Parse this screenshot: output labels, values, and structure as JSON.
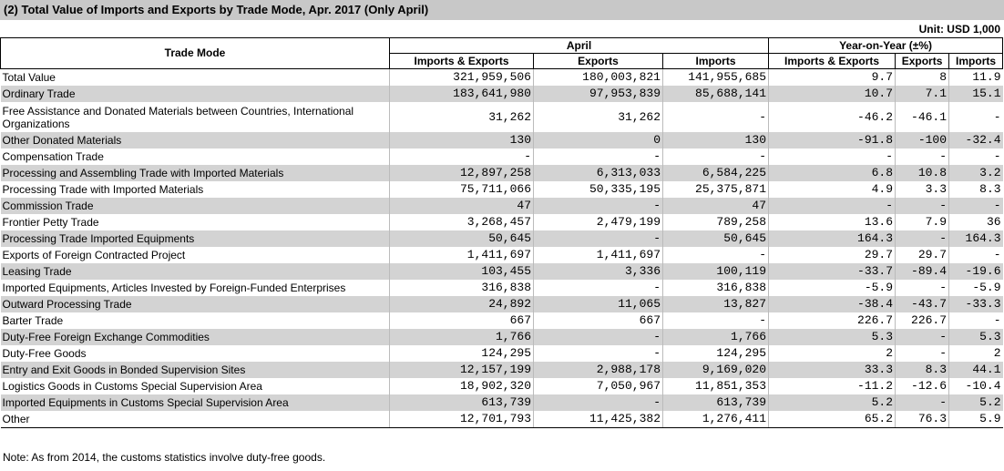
{
  "header": {
    "title": "(2) Total Value of Imports and Exports by Trade Mode, Apr. 2017 (Only April)",
    "unit": "Unit: USD 1,000"
  },
  "table": {
    "columns": {
      "mode": "Trade Mode",
      "groups": [
        "April",
        "Year-on-Year (±%)"
      ],
      "sub": [
        "Imports & Exports",
        "Exports",
        "Imports",
        "Imports & Exports",
        "Exports",
        "Imports"
      ]
    },
    "rows": [
      [
        "Total Value",
        "321,959,506",
        "180,003,821",
        "141,955,685",
        "9.7",
        "8",
        "11.9"
      ],
      [
        "Ordinary Trade",
        "183,641,980",
        "97,953,839",
        "85,688,141",
        "10.7",
        "7.1",
        "15.1"
      ],
      [
        "Free Assistance and Donated Materials between Countries, International Organizations",
        "31,262",
        "31,262",
        "-",
        "-46.2",
        "-46.1",
        "-"
      ],
      [
        "Other Donated Materials",
        "130",
        "0",
        "130",
        "-91.8",
        "-100",
        "-32.4"
      ],
      [
        "Compensation Trade",
        "-",
        "-",
        "-",
        "-",
        "-",
        "-"
      ],
      [
        "Processing and Assembling Trade with Imported Materials",
        "12,897,258",
        "6,313,033",
        "6,584,225",
        "6.8",
        "10.8",
        "3.2"
      ],
      [
        "Processing Trade with Imported Materials",
        "75,711,066",
        "50,335,195",
        "25,375,871",
        "4.9",
        "3.3",
        "8.3"
      ],
      [
        "Commission Trade",
        "47",
        "-",
        "47",
        "-",
        "-",
        "-"
      ],
      [
        "Frontier Petty Trade",
        "3,268,457",
        "2,479,199",
        "789,258",
        "13.6",
        "7.9",
        "36"
      ],
      [
        "Processing Trade Imported Equipments",
        "50,645",
        "-",
        "50,645",
        "164.3",
        "-",
        "164.3"
      ],
      [
        "Exports of Foreign Contracted Project",
        "1,411,697",
        "1,411,697",
        "-",
        "29.7",
        "29.7",
        "-"
      ],
      [
        "Leasing Trade",
        "103,455",
        "3,336",
        "100,119",
        "-33.7",
        "-89.4",
        "-19.6"
      ],
      [
        "Imported Equipments, Articles Invested by Foreign-Funded Enterprises",
        "316,838",
        "-",
        "316,838",
        "-5.9",
        "-",
        "-5.9"
      ],
      [
        "Outward Processing Trade",
        "24,892",
        "11,065",
        "13,827",
        "-38.4",
        "-43.7",
        "-33.3"
      ],
      [
        "Barter Trade",
        "667",
        "667",
        "-",
        "226.7",
        "226.7",
        "-"
      ],
      [
        "Duty-Free Foreign Exchange Commodities",
        "1,766",
        "-",
        "1,766",
        "5.3",
        "-",
        "5.3"
      ],
      [
        "Duty-Free Goods",
        "124,295",
        "-",
        "124,295",
        "2",
        "-",
        "2"
      ],
      [
        "Entry and Exit Goods in Bonded Supervision Sites",
        "12,157,199",
        "2,988,178",
        "9,169,020",
        "33.3",
        "8.3",
        "44.1"
      ],
      [
        "Logistics Goods in Customs Special Supervision Area",
        "18,902,320",
        "7,050,967",
        "11,851,353",
        "-11.2",
        "-12.6",
        "-10.4"
      ],
      [
        "Imported Equipments in Customs Special Supervision Area",
        "613,739",
        "-",
        "613,739",
        "5.2",
        "-",
        "5.2"
      ],
      [
        "Other",
        "12,701,793",
        "11,425,382",
        "1,276,411",
        "65.2",
        "76.3",
        "5.9"
      ]
    ]
  },
  "note": "Note: As from 2014, the customs statistics involve duty-free goods."
}
